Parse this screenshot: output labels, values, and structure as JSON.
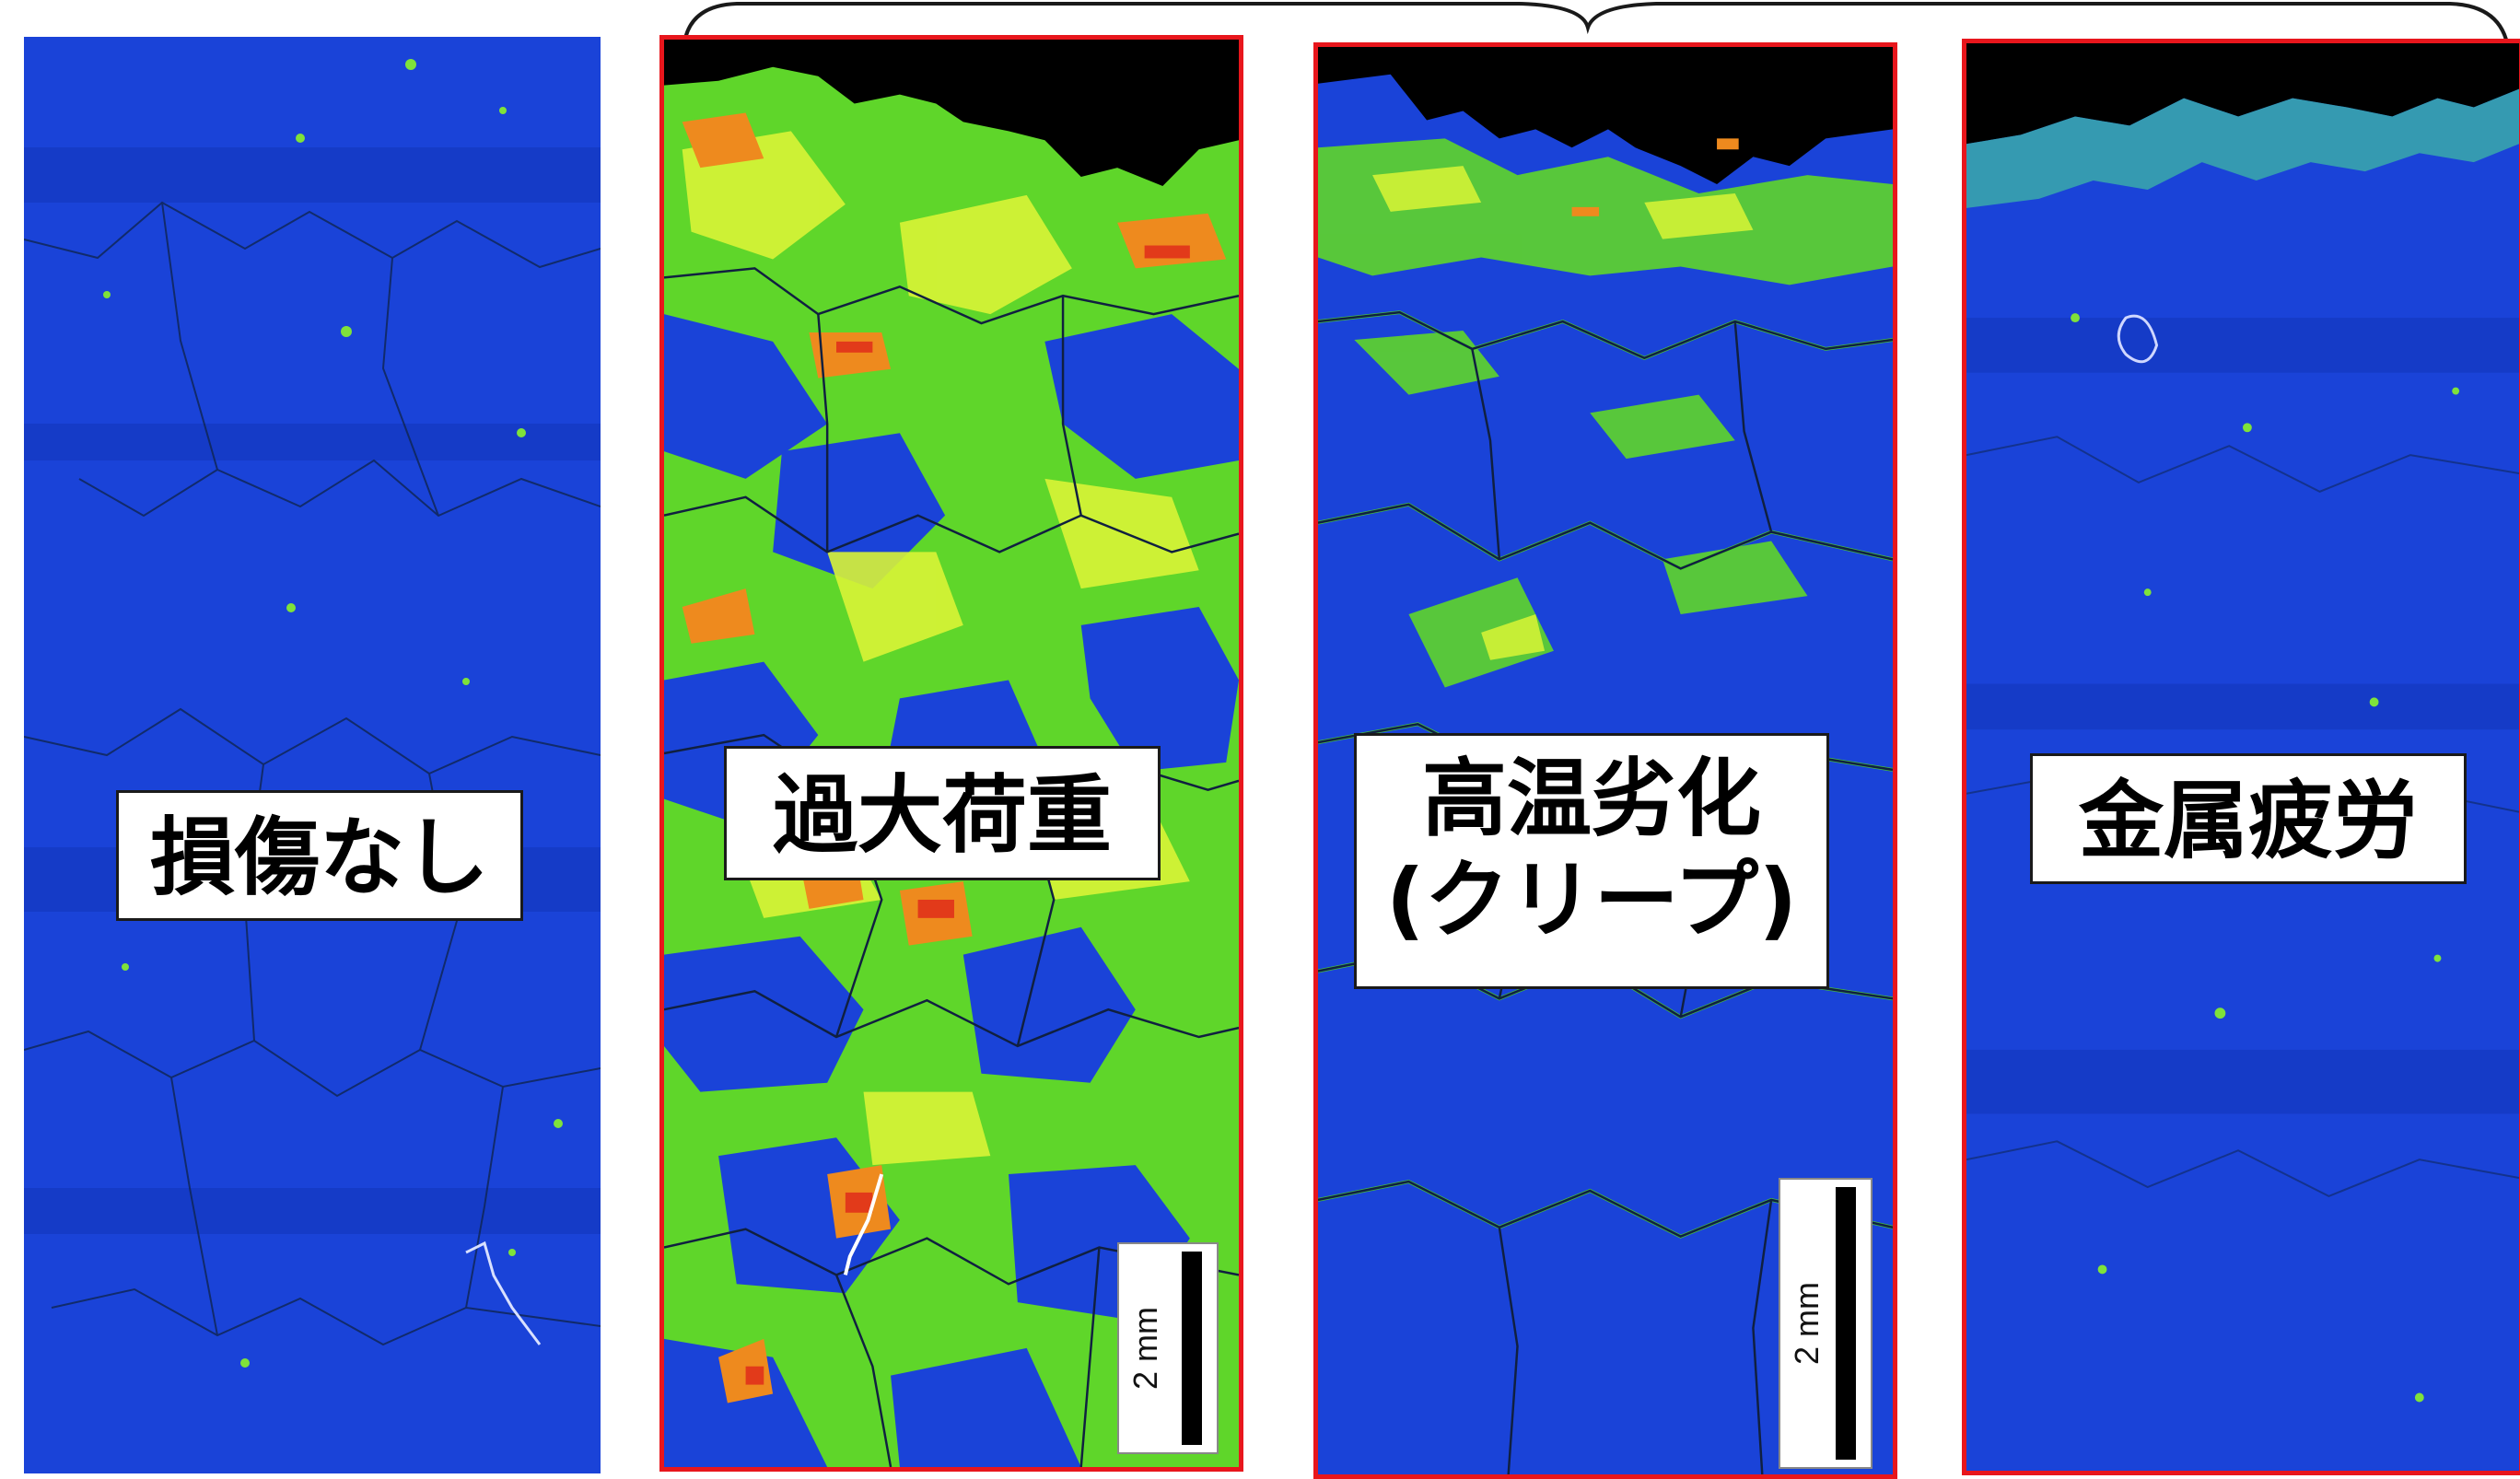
{
  "panels": [
    {
      "label": "損傷なし",
      "scale_text": ""
    },
    {
      "label": "過大荷重",
      "scale_text": "2 mm"
    },
    {
      "label": "高温劣化\n(クリープ)",
      "scale_text": "2 mm"
    },
    {
      "label": "金属疲労",
      "scale_text": ""
    }
  ],
  "colors": {
    "background_blue": "#1a43d8",
    "strain_green": "#6fe12a",
    "strain_yellow": "#d7f233",
    "strain_orange": "#ee8a1e",
    "strain_red": "#e23a1a",
    "frame_red": "#e8161c",
    "grain_boundary": "#102040",
    "void_black": "#000000"
  }
}
